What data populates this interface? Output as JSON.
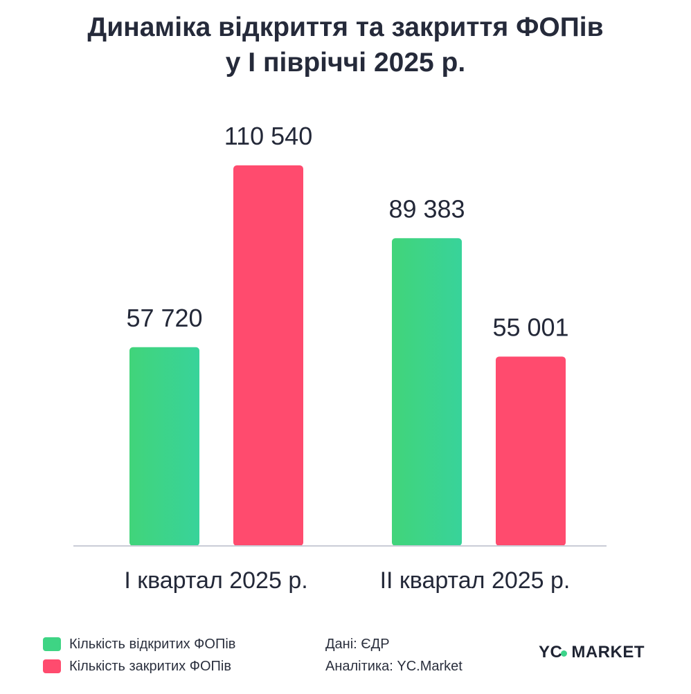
{
  "title_lines": [
    "Динаміка відкриття та закриття ФОПів",
    "у I півріччі 2025 р."
  ],
  "chart_data": {
    "type": "bar",
    "title": "Динаміка відкриття та закриття ФОПів у I півріччі 2025 р.",
    "categories": [
      "I квартал 2025 р.",
      "II квартал 2025 р."
    ],
    "series": [
      {
        "name": "Кількість відкритих ФОПів",
        "values": [
          57720,
          89383
        ],
        "labels": [
          "57 720",
          "89 383"
        ],
        "color": "#3ed484"
      },
      {
        "name": "Кількість закритих ФОПів",
        "values": [
          110540,
          55001
        ],
        "labels": [
          "110 540",
          "55 001"
        ],
        "color": "#ff4b6e"
      }
    ],
    "ylim": [
      0,
      120000
    ],
    "grid": false,
    "legend": "bottom-left"
  },
  "legend": [
    {
      "label": "Кількість відкритих ФОПів",
      "color": "#3ed484"
    },
    {
      "label": "Кількість закритих ФОПів",
      "color": "#ff4b6e"
    }
  ],
  "source": {
    "data": "Дані: ЄДР",
    "analytics": "Аналітика: YC.Market"
  },
  "logo": {
    "left": "YC",
    "right": "MARKET"
  }
}
